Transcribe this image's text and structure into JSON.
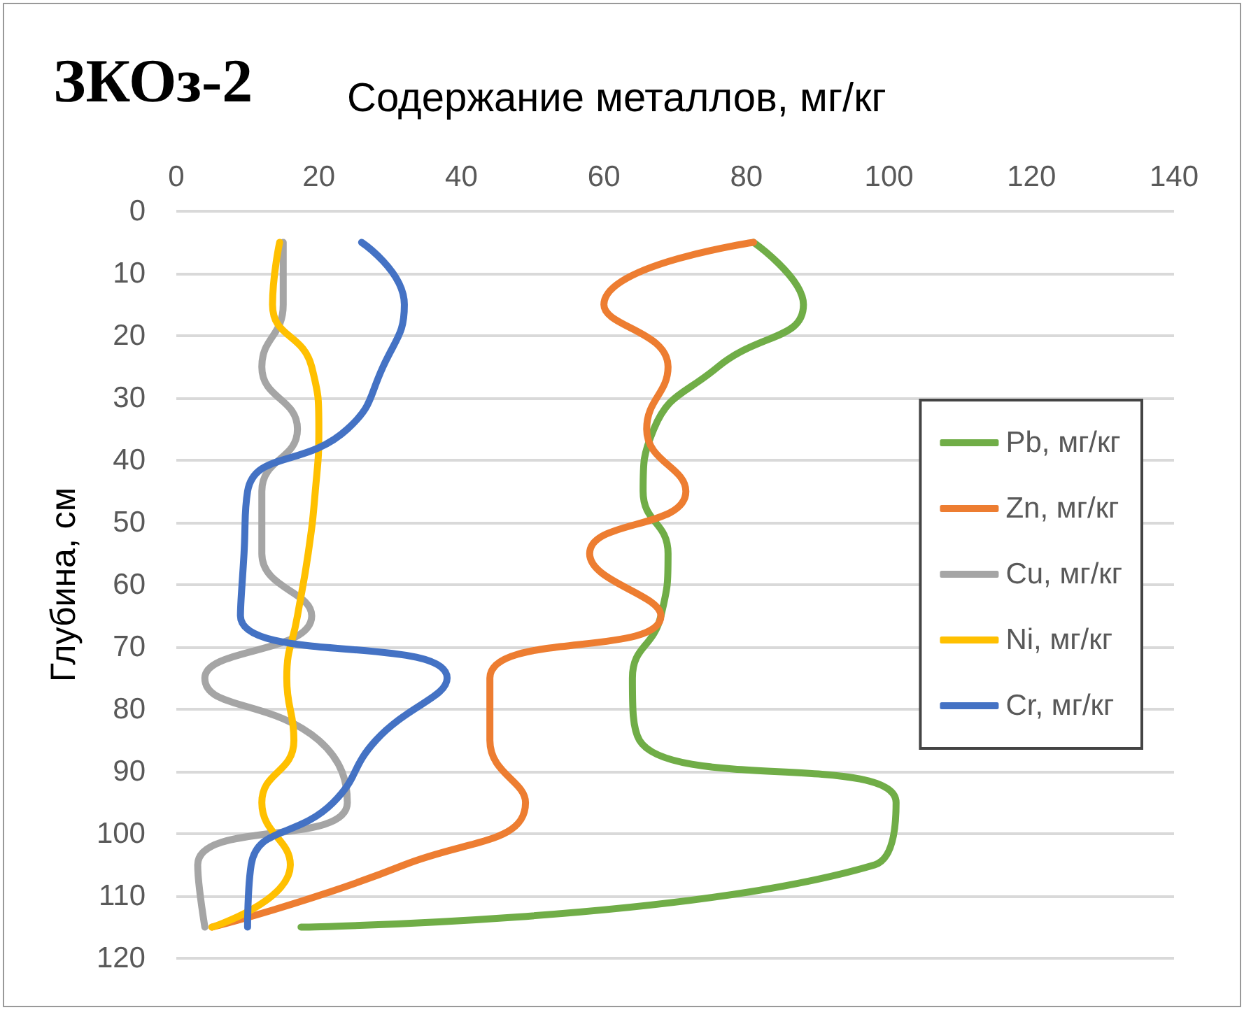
{
  "chart_data": {
    "type": "line",
    "title": "ЗКОз-2",
    "xlabel": "Содержание металлов, мг/кг",
    "ylabel": "Глубина, см",
    "orientation": "horizontal",
    "x": [
      5,
      15,
      25,
      35,
      45,
      55,
      65,
      75,
      85,
      95,
      105,
      115
    ],
    "series": [
      {
        "name": "Pb, мг/кг",
        "color": "#70ad47",
        "values": [
          81,
          88,
          76,
          67,
          65.5,
          69,
          68,
          64,
          65,
          101,
          98,
          17.5
        ]
      },
      {
        "name": "Zn, мг/кг",
        "color": "#ed7d31",
        "values": [
          81,
          60,
          69,
          66,
          71.5,
          58,
          68,
          44,
          44,
          49,
          32,
          5
        ]
      },
      {
        "name": "Cu, мг/кг",
        "color": "#a5a5a5",
        "values": [
          15,
          15,
          12,
          17,
          12,
          12,
          19,
          4,
          20,
          24,
          3,
          4
        ]
      },
      {
        "name": "Ni, мг/кг",
        "color": "#ffc000",
        "values": [
          14.5,
          13.5,
          19,
          20,
          19.5,
          18.5,
          17,
          15.5,
          16.5,
          12,
          16,
          5
        ]
      },
      {
        "name": "Cr, мг/кг",
        "color": "#4472c4",
        "values": [
          26,
          32,
          29,
          24,
          10,
          9.5,
          9,
          38,
          28,
          22,
          10.5,
          10
        ]
      }
    ],
    "xlim": [
      0,
      140
    ],
    "xticks": [
      0,
      20,
      40,
      60,
      80,
      100,
      120,
      140
    ],
    "ylim": [
      120,
      0
    ],
    "yticks": [
      0,
      10,
      20,
      30,
      40,
      50,
      60,
      70,
      80,
      90,
      100,
      110,
      120
    ],
    "grid": "y",
    "legend": "right",
    "marker": "none",
    "line_style": "solid"
  }
}
